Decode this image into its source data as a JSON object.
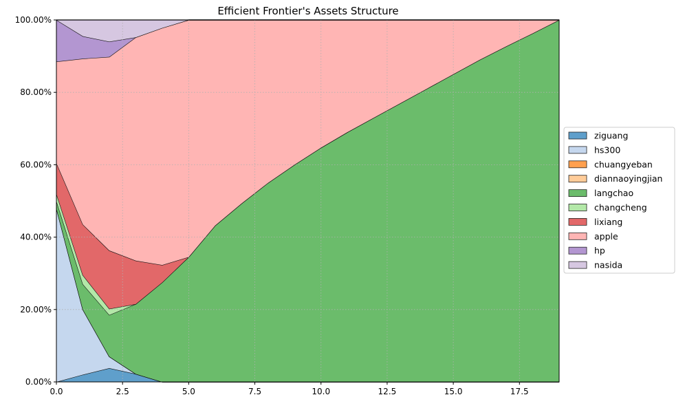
{
  "chart_data": {
    "type": "area",
    "stacked": true,
    "title": "Efficient Frontier's Assets Structure",
    "xlabel": "",
    "ylabel": "",
    "xlim": [
      0,
      19
    ],
    "ylim": [
      0,
      1
    ],
    "x_ticks": [
      "0.0",
      "2.5",
      "5.0",
      "7.5",
      "10.0",
      "12.5",
      "15.0",
      "17.5"
    ],
    "x_tick_values": [
      0,
      2.5,
      5,
      7.5,
      10,
      12.5,
      15,
      17.5
    ],
    "y_ticks": [
      "0.00%",
      "20.00%",
      "40.00%",
      "60.00%",
      "80.00%",
      "100.00%"
    ],
    "y_tick_values": [
      0,
      0.2,
      0.4,
      0.6,
      0.8,
      1.0
    ],
    "grid": true,
    "legend_placement": "center-right",
    "x": [
      0,
      1,
      2,
      3,
      4,
      5,
      6,
      7,
      8,
      9,
      10,
      11,
      12,
      13,
      14,
      15,
      16,
      17,
      18,
      19
    ],
    "series": [
      {
        "name": "ziguang",
        "color": "#5f9fcb",
        "values": [
          0,
          0.02,
          0.038,
          0.022,
          0,
          0,
          0,
          0,
          0,
          0,
          0,
          0,
          0,
          0,
          0,
          0,
          0,
          0,
          0,
          0
        ]
      },
      {
        "name": "hs300",
        "color": "#c5d7ee",
        "values": [
          0.48,
          0.18,
          0.032,
          0,
          0,
          0,
          0,
          0,
          0,
          0,
          0,
          0,
          0,
          0,
          0,
          0,
          0,
          0,
          0,
          0
        ]
      },
      {
        "name": "chuangyeban",
        "color": "#ffa04f",
        "values": [
          0,
          0,
          0,
          0,
          0,
          0,
          0,
          0,
          0,
          0,
          0,
          0,
          0,
          0,
          0,
          0,
          0,
          0,
          0,
          0
        ]
      },
      {
        "name": "diannaoyingjian",
        "color": "#ffcc99",
        "values": [
          0,
          0,
          0,
          0,
          0,
          0,
          0,
          0,
          0,
          0,
          0,
          0,
          0,
          0,
          0,
          0,
          0,
          0,
          0,
          0
        ]
      },
      {
        "name": "langchao",
        "color": "#6bbc6b",
        "values": [
          0.02,
          0.07,
          0.115,
          0.193,
          0.275,
          0.345,
          0.432,
          0.493,
          0.55,
          0.6,
          0.647,
          0.69,
          0.73,
          0.77,
          0.81,
          0.85,
          0.89,
          0.927,
          0.963,
          1.0
        ]
      },
      {
        "name": "changcheng",
        "color": "#b3e8a8",
        "values": [
          0.02,
          0.025,
          0.017,
          0,
          0,
          0,
          0,
          0,
          0,
          0,
          0,
          0,
          0,
          0,
          0,
          0,
          0,
          0,
          0,
          0
        ]
      },
      {
        "name": "lixiang",
        "color": "#e26869",
        "values": [
          0.085,
          0.14,
          0.161,
          0.12,
          0.048,
          0,
          0,
          0,
          0,
          0,
          0,
          0,
          0,
          0,
          0,
          0,
          0,
          0,
          0,
          0
        ]
      },
      {
        "name": "apple",
        "color": "#ffb5b4",
        "values": [
          0.28,
          0.458,
          0.535,
          0.617,
          0.655,
          0.655,
          0.568,
          0.507,
          0.45,
          0.4,
          0.353,
          0.31,
          0.27,
          0.23,
          0.19,
          0.15,
          0.11,
          0.073,
          0.037,
          0
        ]
      },
      {
        "name": "hp",
        "color": "#b396d1",
        "values": [
          0.115,
          0.062,
          0.042,
          0,
          0,
          0,
          0,
          0,
          0,
          0,
          0,
          0,
          0,
          0,
          0,
          0,
          0,
          0,
          0,
          0
        ]
      },
      {
        "name": "nasida",
        "color": "#d6c7e1",
        "values": [
          0,
          0.045,
          0.06,
          0.048,
          0.022,
          0,
          0,
          0,
          0,
          0,
          0,
          0,
          0,
          0,
          0,
          0,
          0,
          0,
          0,
          0
        ]
      }
    ]
  }
}
